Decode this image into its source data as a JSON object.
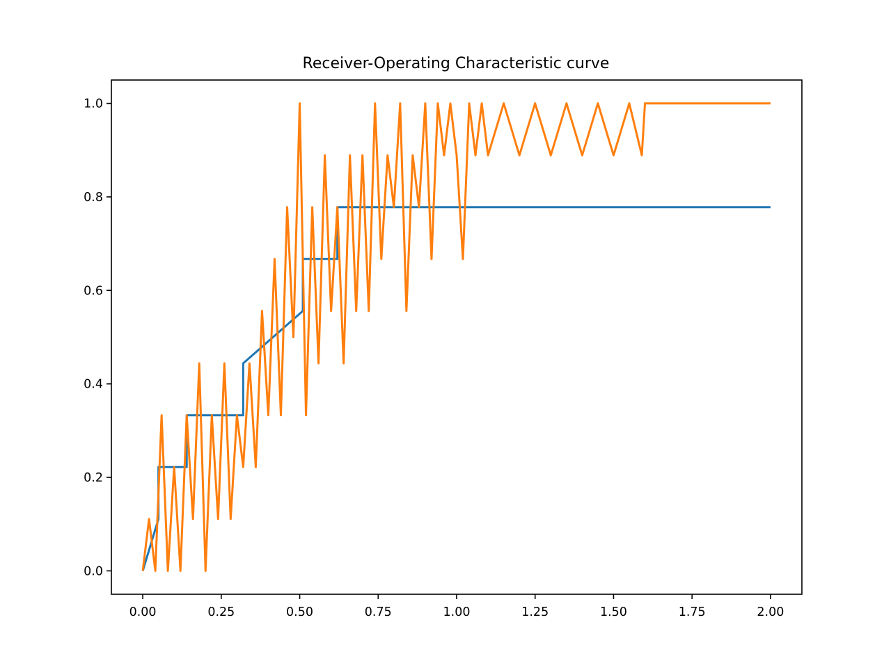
{
  "chart_data": {
    "type": "line",
    "title": "Receiver-Operating Characteristic curve",
    "xlabel": "",
    "ylabel": "",
    "xlim": [
      -0.1,
      2.1
    ],
    "ylim": [
      -0.05,
      1.05
    ],
    "x_ticks": [
      0.0,
      0.25,
      0.5,
      0.75,
      1.0,
      1.25,
      1.5,
      1.75,
      2.0
    ],
    "x_tick_labels": [
      "0.00",
      "0.25",
      "0.50",
      "0.75",
      "1.00",
      "1.25",
      "1.50",
      "1.75",
      "2.00"
    ],
    "y_ticks": [
      0.0,
      0.2,
      0.4,
      0.6,
      0.8,
      1.0
    ],
    "y_tick_labels": [
      "0.0",
      "0.2",
      "0.4",
      "0.6",
      "0.8",
      "1.0"
    ],
    "grid": false,
    "legend": "none",
    "series": [
      {
        "color": "#1f77b4",
        "x": [
          0.0,
          0.05,
          0.05,
          0.14,
          0.14,
          0.32,
          0.32,
          0.51,
          0.51,
          0.62,
          0.62,
          2.0
        ],
        "y": [
          0.0,
          0.111,
          0.222,
          0.222,
          0.333,
          0.333,
          0.444,
          0.556,
          0.667,
          0.667,
          0.778,
          0.778
        ]
      },
      {
        "color": "#ff7f0e",
        "x": [
          0.0,
          0.02,
          0.04,
          0.06,
          0.08,
          0.1,
          0.12,
          0.14,
          0.16,
          0.18,
          0.2,
          0.22,
          0.24,
          0.26,
          0.28,
          0.3,
          0.32,
          0.34,
          0.36,
          0.38,
          0.4,
          0.42,
          0.44,
          0.46,
          0.48,
          0.5,
          0.52,
          0.54,
          0.56,
          0.58,
          0.6,
          0.62,
          0.64,
          0.66,
          0.68,
          0.7,
          0.72,
          0.74,
          0.76,
          0.78,
          0.8,
          0.82,
          0.84,
          0.86,
          0.88,
          0.9,
          0.92,
          0.94,
          0.96,
          0.98,
          1.0,
          1.02,
          1.04,
          1.06,
          1.08,
          1.1,
          1.15,
          1.2,
          1.25,
          1.3,
          1.35,
          1.4,
          1.45,
          1.5,
          1.55,
          1.59,
          1.6,
          2.0
        ],
        "y": [
          0.0,
          0.111,
          0.0,
          0.333,
          0.0,
          0.222,
          0.0,
          0.333,
          0.111,
          0.444,
          0.0,
          0.333,
          0.111,
          0.444,
          0.111,
          0.333,
          0.222,
          0.444,
          0.222,
          0.556,
          0.333,
          0.667,
          0.333,
          0.778,
          0.5,
          1.0,
          0.333,
          0.778,
          0.444,
          0.889,
          0.556,
          0.778,
          0.444,
          0.889,
          0.556,
          0.889,
          0.556,
          1.0,
          0.667,
          0.889,
          0.778,
          1.0,
          0.556,
          0.889,
          0.778,
          1.0,
          0.667,
          1.0,
          0.889,
          1.0,
          0.889,
          0.667,
          1.0,
          0.889,
          1.0,
          0.889,
          1.0,
          0.889,
          1.0,
          0.889,
          1.0,
          0.889,
          1.0,
          0.889,
          1.0,
          0.889,
          1.0,
          1.0
        ]
      }
    ]
  }
}
